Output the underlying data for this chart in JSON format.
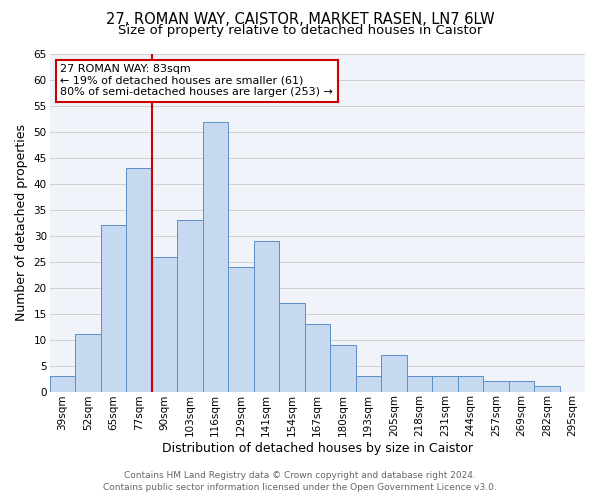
{
  "title": "27, ROMAN WAY, CAISTOR, MARKET RASEN, LN7 6LW",
  "subtitle": "Size of property relative to detached houses in Caistor",
  "xlabel": "Distribution of detached houses by size in Caistor",
  "ylabel": "Number of detached properties",
  "categories": [
    "39sqm",
    "52sqm",
    "65sqm",
    "77sqm",
    "90sqm",
    "103sqm",
    "116sqm",
    "129sqm",
    "141sqm",
    "154sqm",
    "167sqm",
    "180sqm",
    "193sqm",
    "205sqm",
    "218sqm",
    "231sqm",
    "244sqm",
    "257sqm",
    "269sqm",
    "282sqm",
    "295sqm"
  ],
  "values": [
    3,
    11,
    32,
    43,
    26,
    33,
    52,
    24,
    29,
    17,
    13,
    9,
    3,
    7,
    3,
    3,
    3,
    2,
    2,
    1,
    0
  ],
  "bar_color": "#c6d9f0",
  "bar_edge_color": "#5b8fc8",
  "vline_x_index": 3,
  "vline_color": "#cc0000",
  "ylim": [
    0,
    65
  ],
  "yticks": [
    0,
    5,
    10,
    15,
    20,
    25,
    30,
    35,
    40,
    45,
    50,
    55,
    60,
    65
  ],
  "annotation_title": "27 ROMAN WAY: 83sqm",
  "annotation_line1": "← 19% of detached houses are smaller (61)",
  "annotation_line2": "80% of semi-detached houses are larger (253) →",
  "annotation_box_color": "#cc0000",
  "footnote1": "Contains HM Land Registry data © Crown copyright and database right 2024.",
  "footnote2": "Contains public sector information licensed under the Open Government Licence v3.0.",
  "title_fontsize": 10.5,
  "subtitle_fontsize": 9.5,
  "xlabel_fontsize": 9,
  "ylabel_fontsize": 9,
  "tick_fontsize": 7.5,
  "annotation_fontsize": 8,
  "footnote_fontsize": 6.5,
  "grid_color": "#d0d0d0",
  "background_color": "#f0f4fa"
}
